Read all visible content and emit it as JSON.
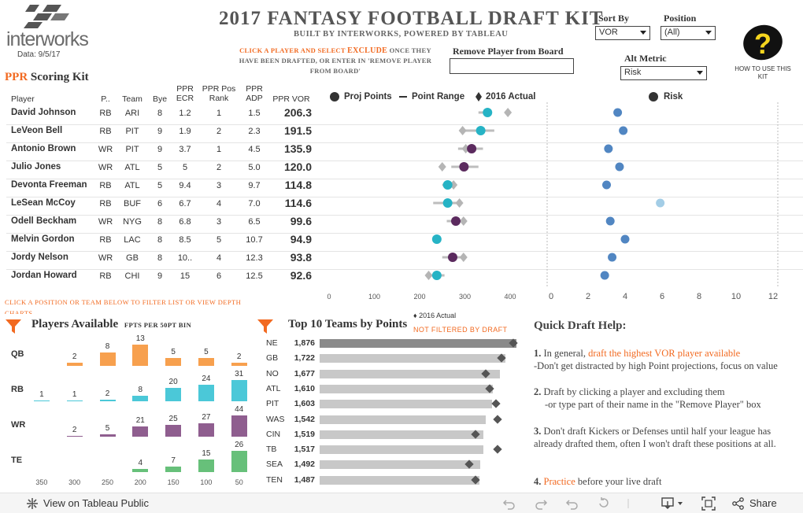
{
  "header": {
    "logo_text": "interworks",
    "data_date": "Data: 9/5/17",
    "title": "2017 FANTASY FOOTBALL DRAFT KIT",
    "subtitle": "BUILT BY INTERWORKS, POWERED BY TABLEAU",
    "instruction_pre": "CLICK A PLAYER AND SELECT",
    "instruction_exclude": "EXCLUDE",
    "instruction_post": "ONCE THEY HAVE BEEN DRAFTED, OR ENTER IN 'REMOVE PLAYER FROM BOARD'",
    "remove_label": "Remove Player from Board",
    "sort_by_label": "Sort By",
    "sort_by_value": "VOR",
    "position_label": "Position",
    "position_value": "(All)",
    "alt_metric_label": "Alt Metric",
    "alt_metric_value": "Risk",
    "help_icon_glyph": "?",
    "help_label": "HOW TO USE THIS KIT"
  },
  "scoring": {
    "title_prefix": "PPR",
    "title_rest": "Scoring Kit",
    "columns": [
      "Player",
      "P..",
      "Team",
      "Bye",
      "PPR ECR",
      "PPR Pos Rank",
      "PPR ADP",
      "PPR VOR"
    ],
    "rows": [
      {
        "name": "David Johnson",
        "pos": "RB",
        "team": "ARI",
        "bye": "8",
        "ecr": "1.2",
        "posrank": "1",
        "adp": "1.5",
        "vor": "206.3"
      },
      {
        "name": "LeVeon Bell",
        "pos": "RB",
        "team": "PIT",
        "bye": "9",
        "ecr": "1.9",
        "posrank": "2",
        "adp": "2.3",
        "vor": "191.5"
      },
      {
        "name": "Antonio Brown",
        "pos": "WR",
        "team": "PIT",
        "bye": "9",
        "ecr": "3.7",
        "posrank": "1",
        "adp": "4.5",
        "vor": "135.9"
      },
      {
        "name": "Julio Jones",
        "pos": "WR",
        "team": "ATL",
        "bye": "5",
        "ecr": "5",
        "posrank": "2",
        "adp": "5.0",
        "vor": "120.0"
      },
      {
        "name": "Devonta Freeman",
        "pos": "RB",
        "team": "ATL",
        "bye": "5",
        "ecr": "9.4",
        "posrank": "3",
        "adp": "9.7",
        "vor": "114.8"
      },
      {
        "name": "LeSean McCoy",
        "pos": "RB",
        "team": "BUF",
        "bye": "6",
        "ecr": "6.7",
        "posrank": "4",
        "adp": "7.0",
        "vor": "114.6"
      },
      {
        "name": "Odell Beckham",
        "pos": "WR",
        "team": "NYG",
        "bye": "8",
        "ecr": "6.8",
        "posrank": "3",
        "adp": "6.5",
        "vor": "99.6"
      },
      {
        "name": "Melvin Gordon",
        "pos": "RB",
        "team": "LAC",
        "bye": "8",
        "ecr": "8.5",
        "posrank": "5",
        "adp": "10.7",
        "vor": "94.9"
      },
      {
        "name": "Jordy Nelson",
        "pos": "WR",
        "team": "GB",
        "bye": "8",
        "ecr": "10..",
        "posrank": "4",
        "adp": "12.3",
        "vor": "93.8"
      },
      {
        "name": "Jordan Howard",
        "pos": "RB",
        "team": "CHI",
        "bye": "9",
        "ecr": "15",
        "posrank": "6",
        "adp": "12.5",
        "vor": "92.6"
      }
    ]
  },
  "legend": {
    "proj_points": "Proj Points",
    "point_range": "Point Range",
    "actual_2016": "2016 Actual",
    "risk": "Risk",
    "actual_2016_below": "2016 Actual"
  },
  "colors": {
    "rb": "#26b3c5",
    "wr": "#5b2a5e",
    "actual": "#b5b5b5",
    "range": "#bdbdbd",
    "risk": "#5186c2",
    "risk_light": "#a3cde6",
    "accent": "#f26a21",
    "qb": "#f7a04e",
    "rb_bar": "#4bc8d8",
    "wr_bar": "#8f5e8f",
    "te_bar": "#67c07a",
    "team_bar": "#c8c8c8",
    "team_bar_top": "#8a8a8a"
  },
  "chart_data": [
    {
      "type": "scatter",
      "name": "Proj Points",
      "xlim": [
        0,
        400
      ],
      "x_ticks": [
        "0",
        "100",
        "200",
        "300",
        "400"
      ],
      "players": [
        "David Johnson",
        "LeVeon Bell",
        "Antonio Brown",
        "Julio Jones",
        "Devonta Freeman",
        "LeSean McCoy",
        "Odell Beckham",
        "Melvin Gordon",
        "Jordy Nelson",
        "Jordan Howard"
      ],
      "position": [
        "RB",
        "RB",
        "WR",
        "WR",
        "RB",
        "RB",
        "WR",
        "RB",
        "WR",
        "RB"
      ],
      "proj_points": [
        350,
        335,
        315,
        298,
        262,
        262,
        280,
        238,
        273,
        238
      ],
      "range_low": [
        330,
        300,
        285,
        270,
        250,
        230,
        260,
        230,
        250,
        220
      ],
      "range_high": [
        360,
        365,
        340,
        330,
        275,
        290,
        300,
        245,
        290,
        255
      ],
      "actual_2016": [
        395,
        295,
        302,
        250,
        275,
        288,
        297,
        null,
        297,
        220
      ]
    },
    {
      "type": "scatter",
      "name": "Risk",
      "xlim": [
        0,
        12
      ],
      "x_ticks": [
        "0",
        "2",
        "4",
        "6",
        "8",
        "10",
        "12"
      ],
      "values": [
        3.6,
        3.9,
        3.1,
        3.7,
        3.0,
        5.9,
        3.2,
        4.0,
        3.3,
        2.9
      ]
    },
    {
      "type": "bar",
      "name": "Players Available",
      "title": "Players Available",
      "subtitle": "FPTS PER 50PT BIN",
      "categories": [
        "350",
        "300",
        "250",
        "200",
        "150",
        "100",
        "50"
      ],
      "series": [
        {
          "name": "QB",
          "values": [
            null,
            2,
            8,
            13,
            5,
            5,
            2
          ]
        },
        {
          "name": "RB",
          "values": [
            1,
            1,
            2,
            8,
            20,
            24,
            31
          ]
        },
        {
          "name": "WR",
          "values": [
            null,
            2,
            5,
            21,
            25,
            27,
            44
          ]
        },
        {
          "name": "TE",
          "values": [
            null,
            null,
            null,
            4,
            7,
            15,
            26
          ]
        }
      ]
    },
    {
      "type": "bar",
      "name": "Top 10 Teams by Points",
      "title": "Top 10 Teams by Points",
      "categories": [
        "NE",
        "GB",
        "NO",
        "ATL",
        "PIT",
        "WAS",
        "CIN",
        "TB",
        "SEA",
        "TEN"
      ],
      "values": [
        1876,
        1722,
        1677,
        1610,
        1603,
        1542,
        1519,
        1517,
        1492,
        1487
      ],
      "labels": [
        "1,876",
        "1,722",
        "1,677",
        "1,610",
        "1,603",
        "1,542",
        "1,519",
        "1,517",
        "1,492",
        "1,487"
      ],
      "actual_2016": [
        1850,
        1690,
        1540,
        1580,
        1640,
        1650,
        1450,
        1650,
        1390,
        1450
      ],
      "xlim": [
        0,
        1900
      ]
    }
  ],
  "bottom": {
    "filter_note": "CLICK A POSITION OR TEAM BELOW TO FILTER LIST OR VIEW DEPTH CHARTS",
    "players_title": "Players Available",
    "players_sub": "FPTS PER 50PT BIN",
    "teams_title": "Top 10 Teams by Points",
    "teams_note": "NOT FILTERED BY DRAFT",
    "filter_icon": "filter-icon"
  },
  "help": {
    "title": "Quick Draft Help:",
    "item1_num": "1.",
    "item1_pre": "In general,",
    "item1_orange": "draft the highest VOR player available",
    "item1_line2": "-Don't get distracted by high Point projections, focus on value",
    "item2_num": "2.",
    "item2_line1": "Draft by clicking a player and excluding them",
    "item2_line2": "-or type part of their name in the \"Remove Player\" box",
    "item3_num": "3.",
    "item3_text": "Don't draft Kickers or Defenses until half your league has already drafted them, often I won't draft these positions at all.",
    "item4_num": "4.",
    "item4_orange": "Practice",
    "item4_rest": "before your live draft"
  },
  "footer": {
    "view_label": "View on Tableau Public",
    "share_label": "Share"
  }
}
